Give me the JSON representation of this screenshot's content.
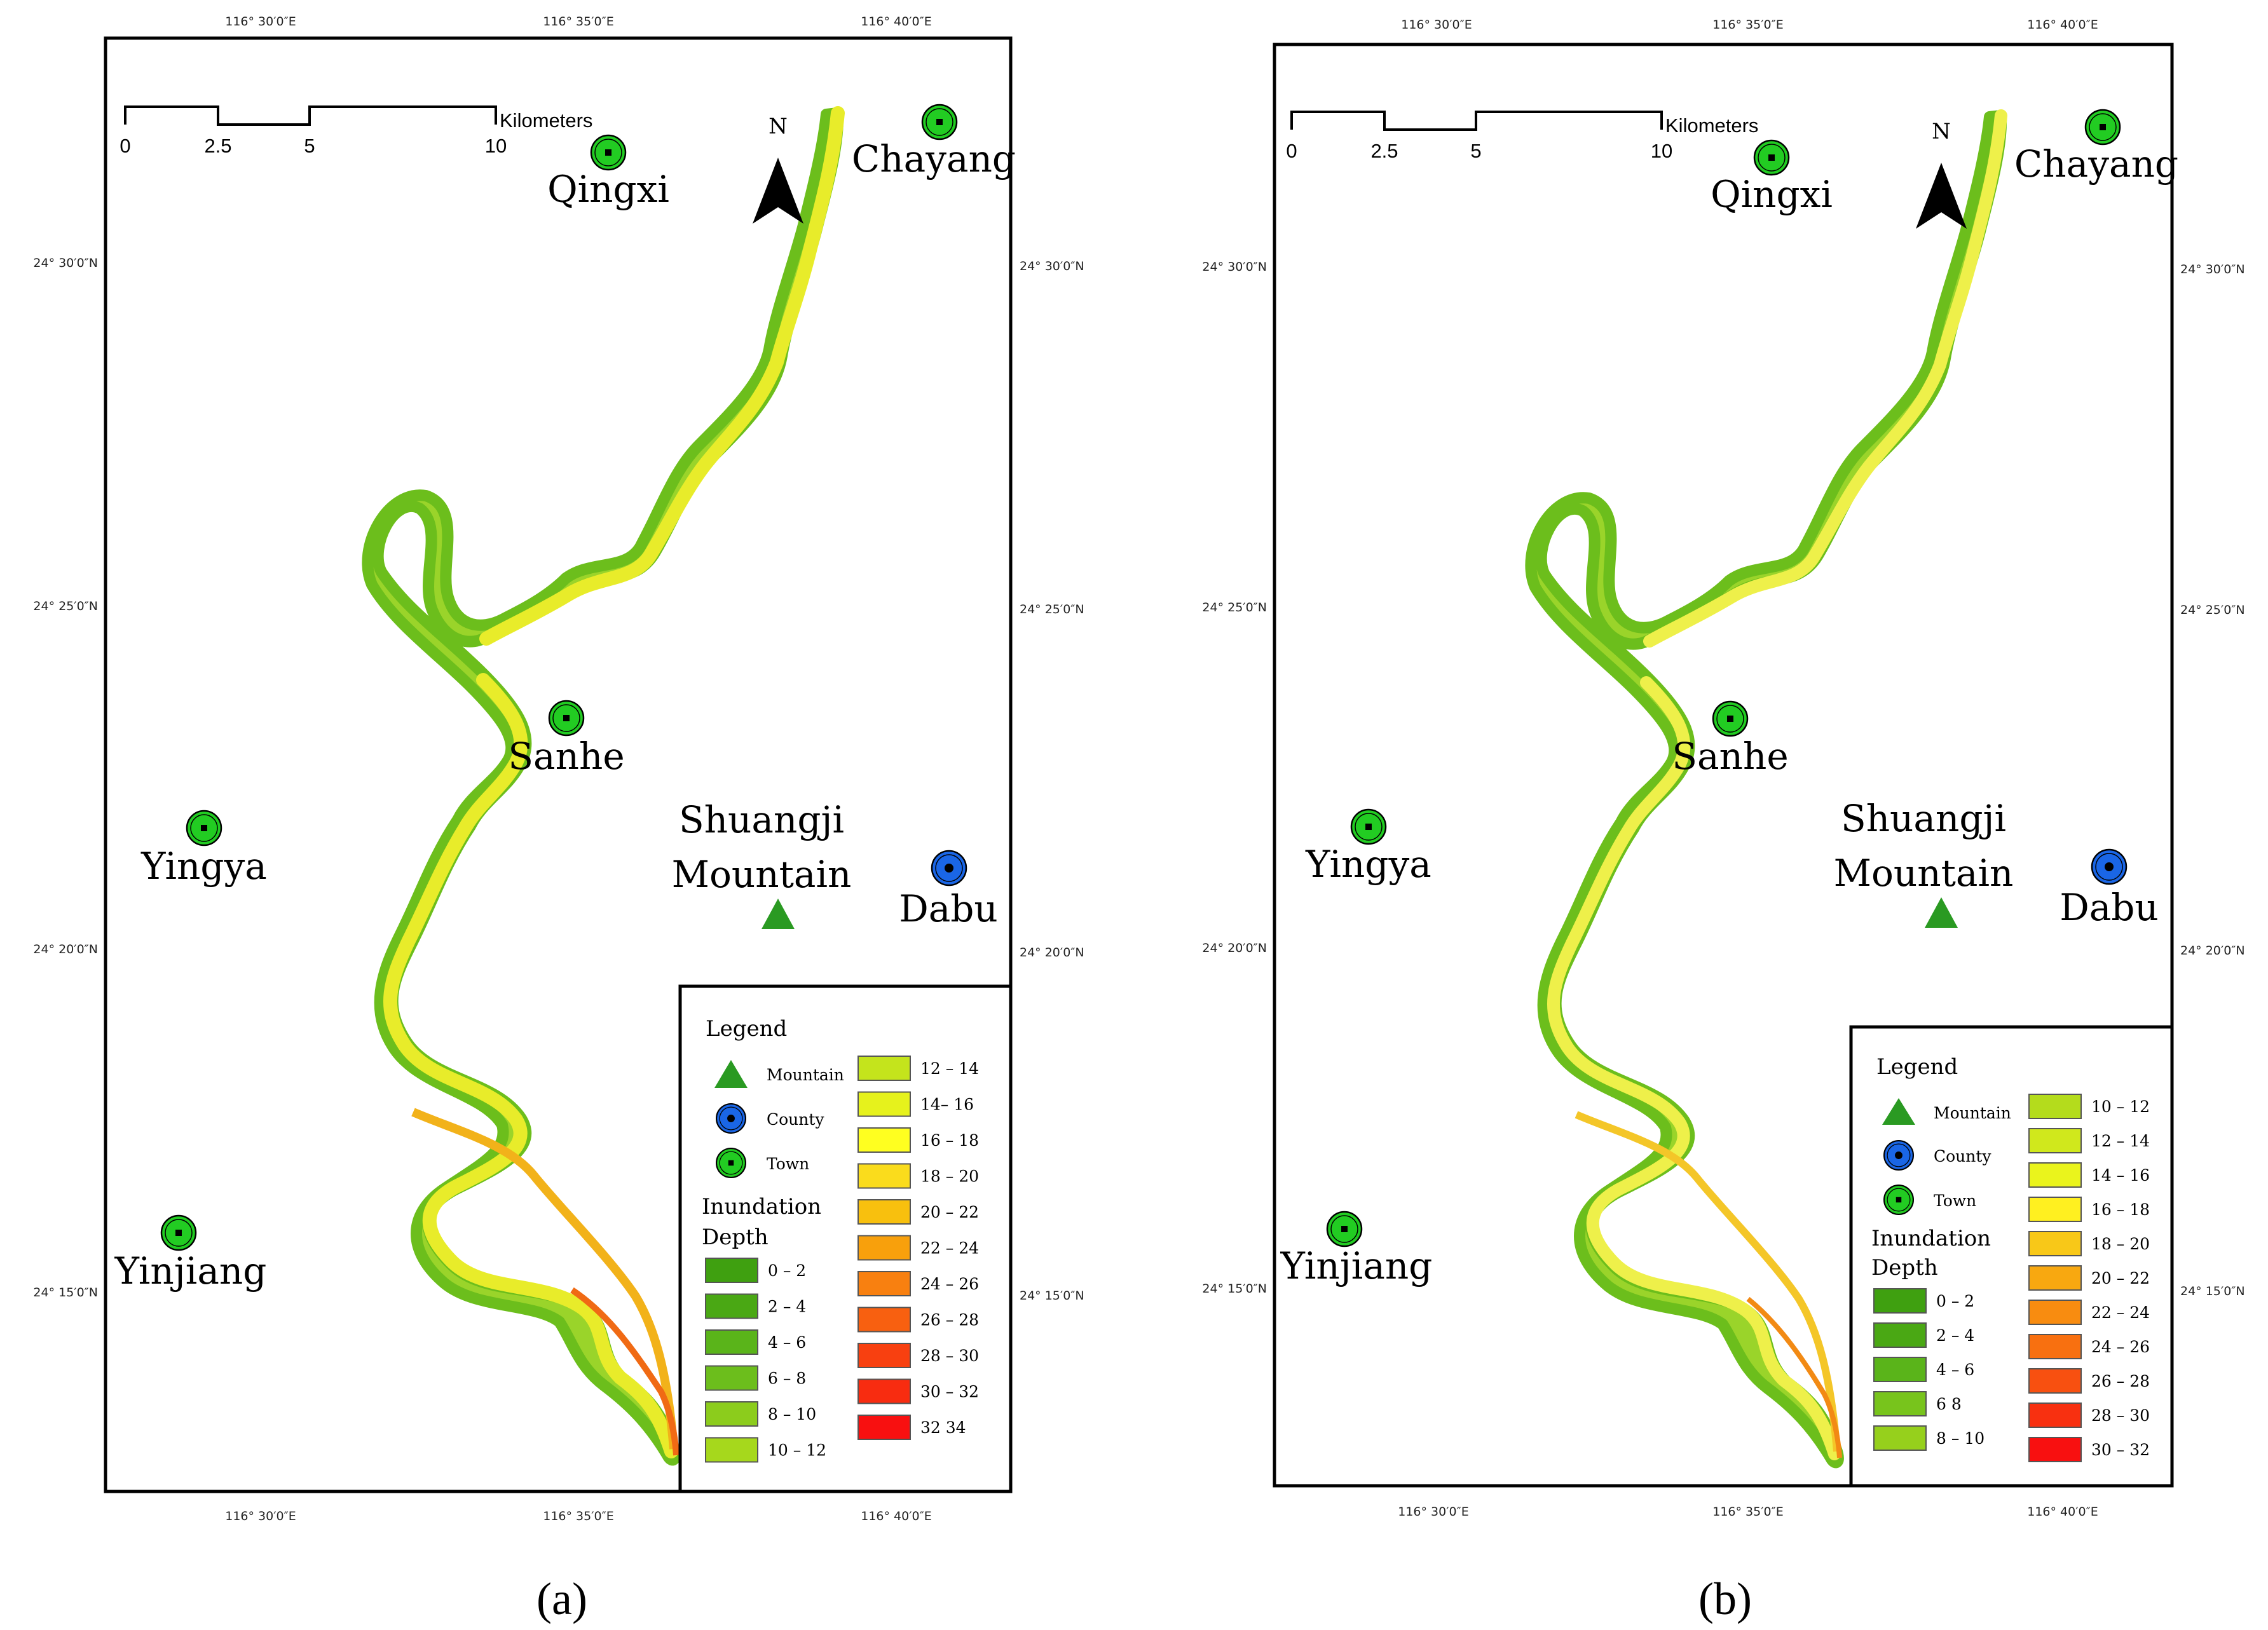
{
  "panels": [
    {
      "caption": "(a)",
      "caption_letter": "a",
      "lon_labels": [
        "116° 30′0″E",
        "116° 35′0″E",
        "116° 40′0″E"
      ],
      "lat_labels": [
        "24° 30′0″N",
        "24° 25′0″N",
        "24° 20′0″N",
        "24° 15′0″N"
      ],
      "scale": {
        "ticks": [
          "0",
          "2.5",
          "5",
          "10"
        ],
        "unit": "Kilometers"
      },
      "north": "N",
      "places": {
        "qingxi": "Qingxi",
        "chayang": "Chayang",
        "sanhe": "Sanhe",
        "yingya": "Yingya",
        "yinjiang": "Yinjiang",
        "dabu": "Dabu",
        "mountain_line1": "Shuangji",
        "mountain_line2": "Mountain"
      },
      "legend": {
        "title": "Legend",
        "mountain": "Mountain",
        "county": "County",
        "town": "Town",
        "depth_title_1": "Inundation",
        "depth_title_2": "Depth",
        "classes": [
          {
            "label": "0 – 2",
            "color": "#3fa010"
          },
          {
            "label": "2 – 4",
            "color": "#4aa814"
          },
          {
            "label": "4 – 6",
            "color": "#5ab41a"
          },
          {
            "label": "6 – 8",
            "color": "#6cbe1c"
          },
          {
            "label": "8 – 10",
            "color": "#8ccc1c"
          },
          {
            "label": "10 – 12",
            "color": "#a6d81c"
          },
          {
            "label": "12 – 14",
            "color": "#c4e41c"
          },
          {
            "label": "14– 16",
            "color": "#e6f21c"
          },
          {
            "label": "16 – 18",
            "color": "#ffff20"
          },
          {
            "label": "18 – 20",
            "color": "#fadc1c"
          },
          {
            "label": "20 – 22",
            "color": "#f8c00e"
          },
          {
            "label": "22 – 24",
            "color": "#f8a00c"
          },
          {
            "label": "24 – 26",
            "color": "#f88010"
          },
          {
            "label": "26 – 28",
            "color": "#f86010"
          },
          {
            "label": "28 – 30",
            "color": "#f84010"
          },
          {
            "label": "30 – 32",
            "color": "#f82c10"
          },
          {
            "label": "32   34",
            "color": "#f81010"
          }
        ]
      }
    },
    {
      "caption": "(b)",
      "caption_letter": "b",
      "lon_labels": [
        "116° 30′0″E",
        "116° 35′0″E",
        "116° 40′0″E"
      ],
      "lat_labels": [
        "24° 30′0″N",
        "24° 25′0″N",
        "24° 20′0″N",
        "24° 15′0″N"
      ],
      "scale": {
        "ticks": [
          "0",
          "2.5",
          "5",
          "10"
        ],
        "unit": "Kilometers"
      },
      "north": "N",
      "places": {
        "qingxi": "Qingxi",
        "chayang": "Chayang",
        "sanhe": "Sanhe",
        "yingya": "Yingya",
        "yinjiang": "Yinjiang",
        "dabu": "Dabu",
        "mountain_line1": "Shuangji",
        "mountain_line2": "Mountain"
      },
      "legend": {
        "title": "Legend",
        "mountain": "Mountain",
        "county": "County",
        "town": "Town",
        "depth_title_1": "Inundation",
        "depth_title_2": "Depth",
        "classes": [
          {
            "label": "0 – 2",
            "color": "#3fa010"
          },
          {
            "label": "2 – 4",
            "color": "#4aa814"
          },
          {
            "label": "4 – 6",
            "color": "#5ab41a"
          },
          {
            "label": "6   8",
            "color": "#78c41c"
          },
          {
            "label": "8 – 10",
            "color": "#96d01c"
          },
          {
            "label": "10 – 12",
            "color": "#b4dc1c"
          },
          {
            "label": "12 – 14",
            "color": "#d0e81c"
          },
          {
            "label": "14 – 16",
            "color": "#eaf41c"
          },
          {
            "label": "16 – 18",
            "color": "#fff020"
          },
          {
            "label": "18 – 20",
            "color": "#f8c818"
          },
          {
            "label": "20 – 22",
            "color": "#f8a810"
          },
          {
            "label": "22 – 24",
            "color": "#f88c10"
          },
          {
            "label": "24 – 26",
            "color": "#f87010"
          },
          {
            "label": "26 – 28",
            "color": "#f85010"
          },
          {
            "label": "28 – 30",
            "color": "#f83010"
          },
          {
            "label": "30 – 32",
            "color": "#f81010"
          }
        ]
      }
    }
  ]
}
